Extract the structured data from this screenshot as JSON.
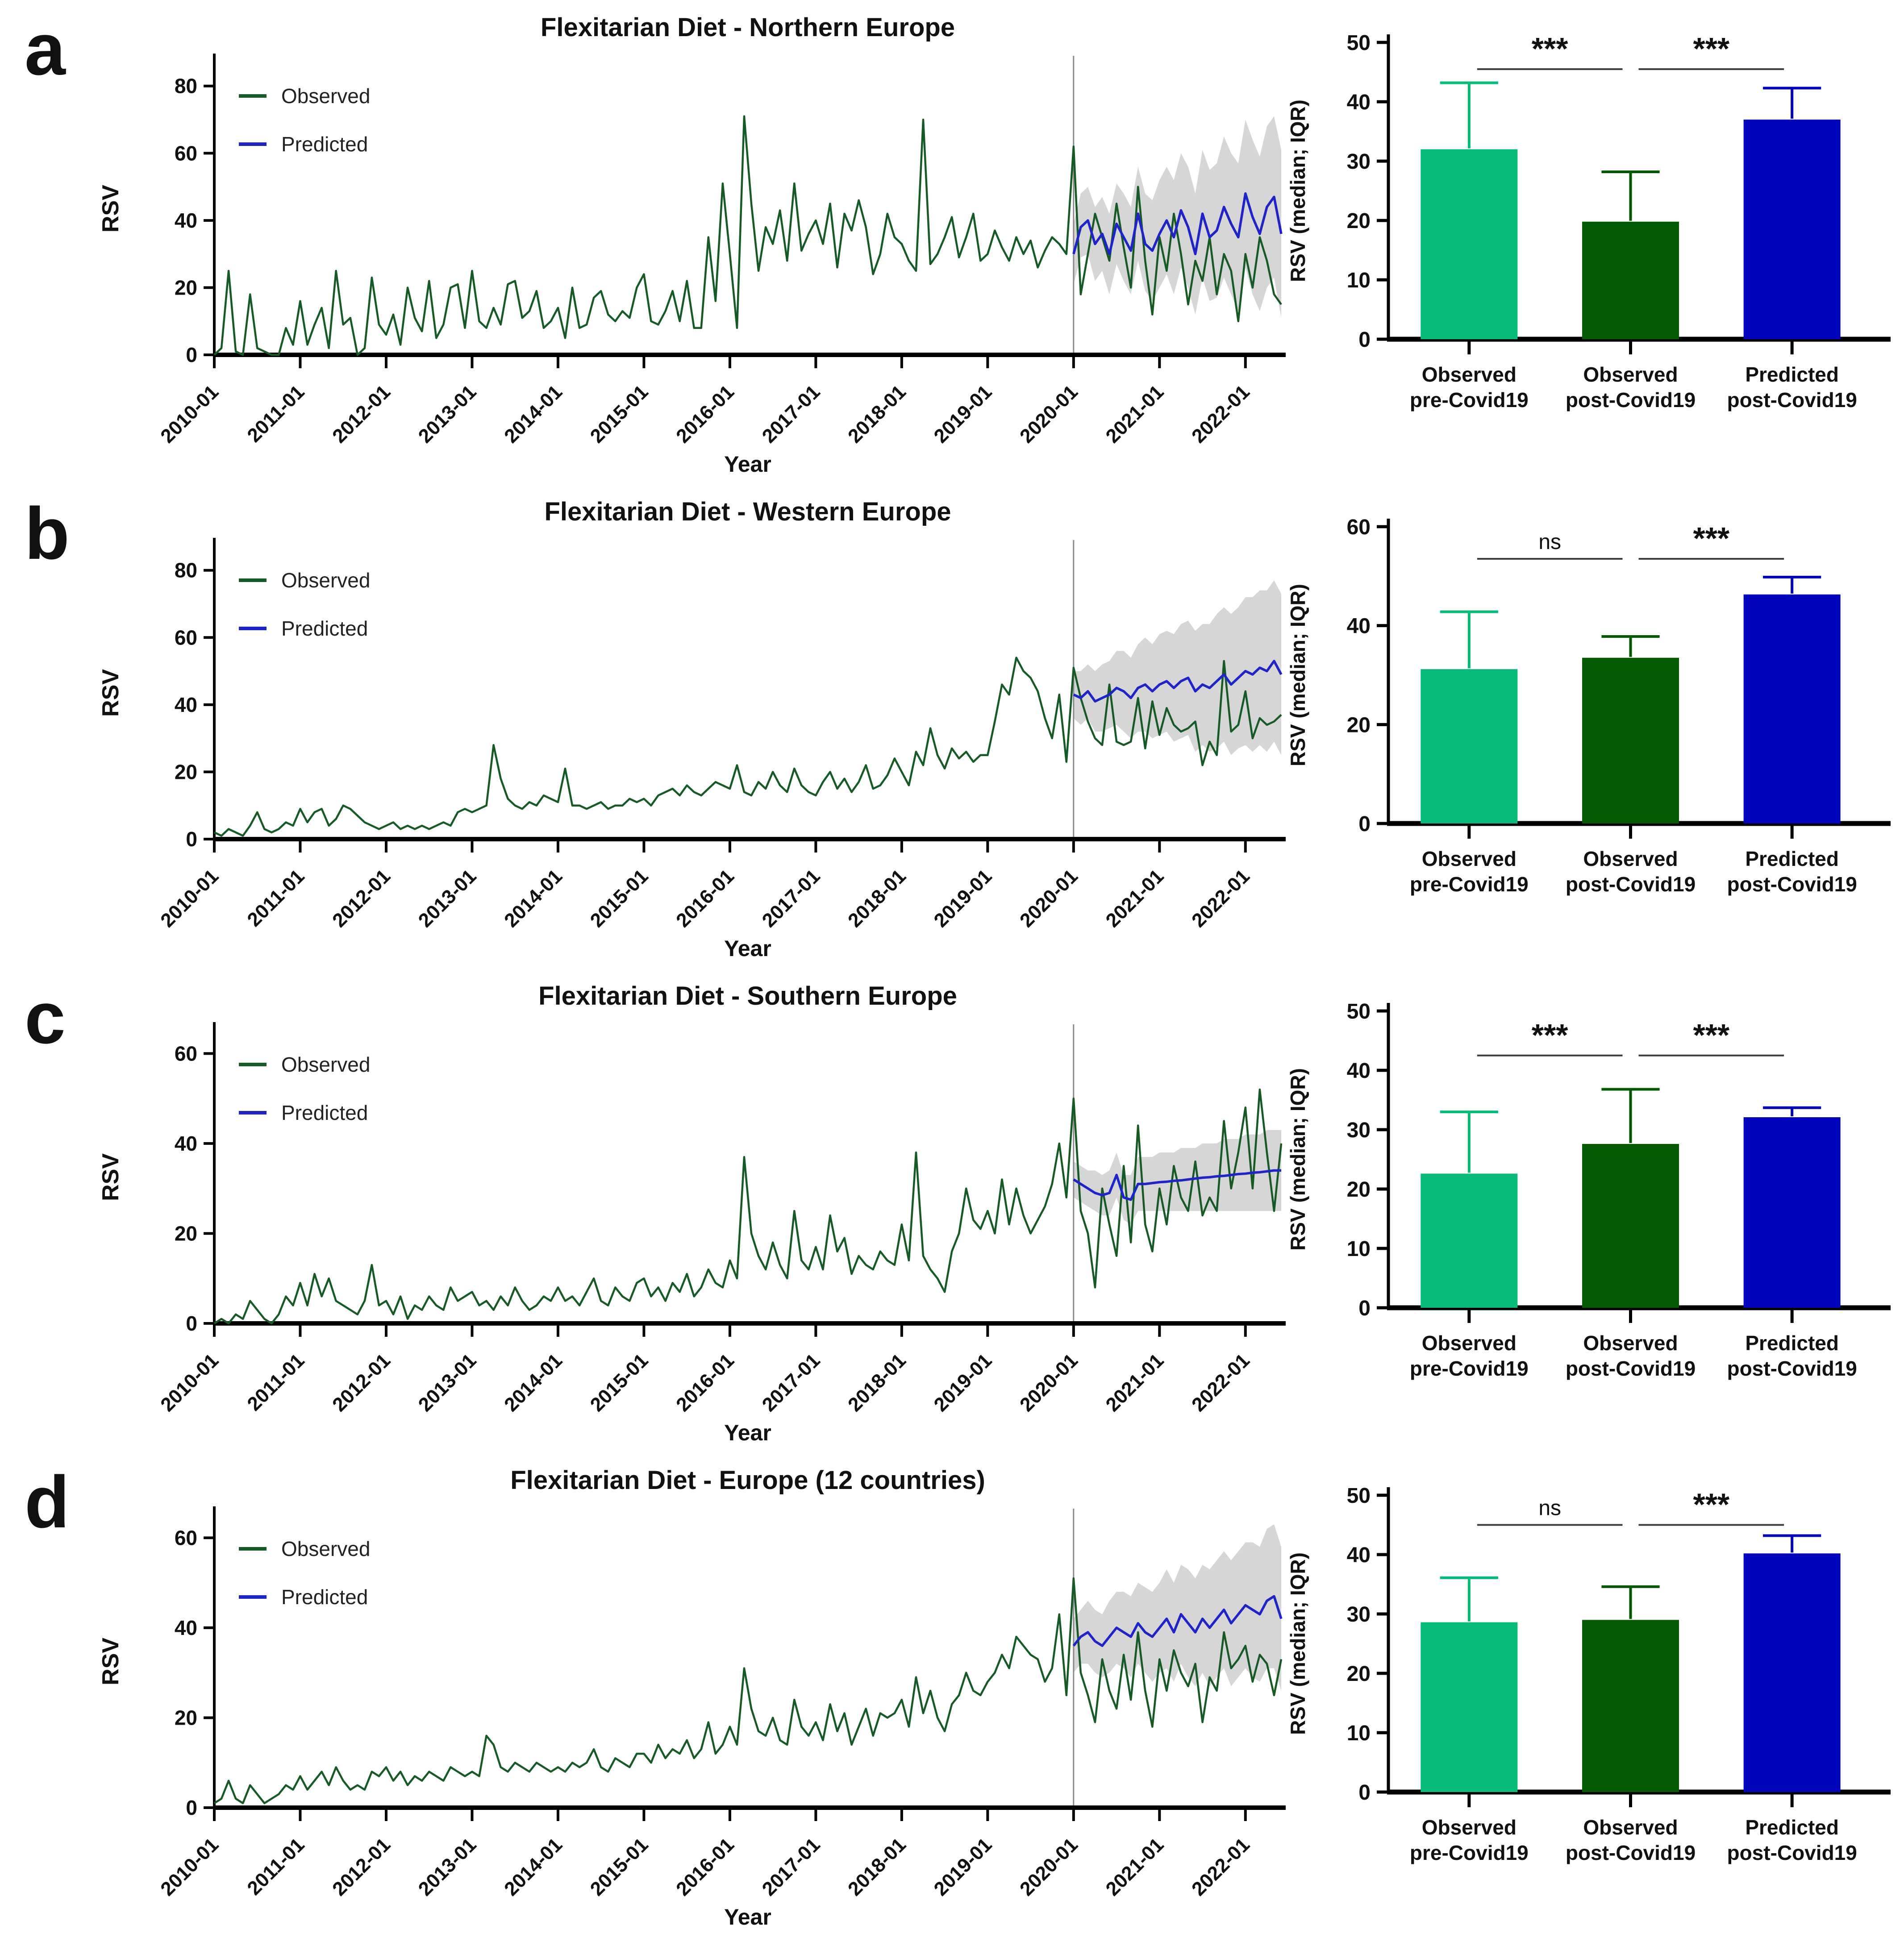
{
  "figure": {
    "xlabel": "Year",
    "line_ylabel": "RSV",
    "bar_ylabel": "RSV (median; IQR)",
    "legend": [
      "Observed",
      "Predicted"
    ],
    "x_tick_labels": [
      "2010-01",
      "2011-01",
      "2012-01",
      "2013-01",
      "2014-01",
      "2015-01",
      "2016-01",
      "2017-01",
      "2018-01",
      "2019-01",
      "2020-01",
      "2021-01",
      "2022-01"
    ]
  },
  "colors": {
    "observed_line": "#165a25",
    "predicted_line": "#1f24c7",
    "ci_band": "#cfcfcf",
    "vline": "#8a8a8a",
    "axis": "#000000",
    "bar_pre": "#07bc78",
    "bar_post": "#015a01",
    "bar_pred": "#0104bb",
    "sig_line": "#3c3c3c"
  },
  "chart_data": [
    {
      "letter": "a",
      "title": "Flexitarian Diet - Northern Europe",
      "line": {
        "type": "line",
        "ymax": 87,
        "yticks": [
          0,
          20,
          40,
          60,
          80
        ],
        "vline_index": 120,
        "observed": [
          0,
          2,
          25,
          1,
          0,
          18,
          2,
          1,
          0,
          0,
          8,
          3,
          16,
          3,
          9,
          14,
          2,
          25,
          9,
          11,
          0,
          2,
          23,
          9,
          6,
          12,
          3,
          20,
          11,
          7,
          22,
          5,
          9,
          20,
          21,
          8,
          25,
          10,
          8,
          14,
          9,
          21,
          22,
          11,
          13,
          19,
          8,
          10,
          14,
          5,
          20,
          8,
          9,
          17,
          19,
          12,
          10,
          13,
          11,
          20,
          24,
          10,
          9,
          13,
          19,
          10,
          22,
          8,
          8,
          35,
          16,
          51,
          30,
          8,
          71,
          45,
          25,
          38,
          33,
          43,
          28,
          51,
          31,
          36,
          40,
          33,
          45,
          26,
          42,
          37,
          46,
          38,
          24,
          30,
          42,
          35,
          33,
          28,
          25,
          70,
          27,
          30,
          35,
          41,
          29,
          35,
          42,
          28,
          30,
          37,
          32,
          28,
          35,
          30,
          34,
          26,
          31,
          35,
          33,
          30,
          62,
          18,
          30,
          42,
          35,
          28,
          45,
          32,
          20,
          50,
          28,
          12,
          35,
          25,
          42,
          30,
          15,
          28,
          22,
          35,
          18,
          30,
          25,
          10,
          30,
          20,
          35,
          28,
          18,
          15
        ],
        "predicted_start": 120,
        "predicted": [
          30,
          38,
          40,
          33,
          36,
          30,
          39,
          35,
          31,
          42,
          33,
          31,
          36,
          40,
          35,
          43,
          38,
          30,
          42,
          35,
          37,
          44,
          39,
          35,
          48,
          41,
          36,
          44,
          47,
          36
        ],
        "ci_upper": [
          39,
          48,
          50,
          44,
          47,
          42,
          51,
          48,
          44,
          56,
          48,
          46,
          52,
          56,
          52,
          60,
          56,
          48,
          61,
          55,
          57,
          65,
          60,
          57,
          70,
          64,
          59,
          68,
          71,
          61
        ],
        "ci_lower": [
          21,
          29,
          30,
          22,
          25,
          18,
          27,
          22,
          18,
          28,
          19,
          16,
          20,
          24,
          18,
          26,
          20,
          12,
          23,
          16,
          17,
          23,
          18,
          13,
          26,
          18,
          13,
          20,
          23,
          11
        ]
      },
      "bar": {
        "type": "bar",
        "ymax": 50,
        "yticks": [
          0,
          10,
          20,
          30,
          40,
          50
        ],
        "categories": [
          [
            "Observed",
            "pre-Covid19"
          ],
          [
            "Observed",
            "post-Covid19"
          ],
          [
            "Predicted",
            "post-Covid19"
          ]
        ],
        "values": [
          32,
          19.8,
          37
        ],
        "errors_upper": [
          43.2,
          28.2,
          42.3
        ],
        "sig": [
          {
            "from": 0,
            "to": 1,
            "label": "***"
          },
          {
            "from": 1,
            "to": 2,
            "label": "***"
          }
        ],
        "sig_y": 45.5
      }
    },
    {
      "letter": "b",
      "title": "Flexitarian Diet - Western Europe",
      "line": {
        "type": "line",
        "ymax": 87,
        "yticks": [
          0,
          20,
          40,
          60,
          80
        ],
        "vline_index": 120,
        "observed": [
          2,
          1,
          3,
          2,
          1,
          4,
          8,
          3,
          2,
          3,
          5,
          4,
          9,
          5,
          8,
          9,
          4,
          6,
          10,
          9,
          7,
          5,
          4,
          3,
          4,
          5,
          3,
          4,
          3,
          4,
          3,
          4,
          5,
          4,
          8,
          9,
          8,
          9,
          10,
          28,
          18,
          12,
          10,
          9,
          11,
          10,
          13,
          12,
          11,
          21,
          10,
          10,
          9,
          10,
          11,
          9,
          10,
          10,
          12,
          11,
          12,
          10,
          13,
          14,
          15,
          13,
          16,
          14,
          13,
          15,
          17,
          16,
          15,
          22,
          14,
          13,
          17,
          15,
          20,
          16,
          14,
          21,
          16,
          14,
          13,
          17,
          20,
          15,
          18,
          14,
          17,
          22,
          15,
          16,
          19,
          24,
          20,
          16,
          26,
          22,
          33,
          25,
          21,
          27,
          24,
          26,
          23,
          25,
          25,
          35,
          46,
          43,
          54,
          50,
          48,
          44,
          36,
          30,
          43,
          23,
          51,
          42,
          35,
          30,
          28,
          46,
          29,
          28,
          29,
          42,
          27,
          41,
          31,
          39,
          34,
          32,
          33,
          35,
          22,
          29,
          25,
          53,
          32,
          34,
          44,
          30,
          36,
          34,
          35,
          37
        ],
        "predicted_start": 120,
        "predicted": [
          43,
          42,
          44,
          41,
          42,
          43,
          45,
          44,
          42,
          45,
          46,
          44,
          46,
          47,
          45,
          47,
          48,
          44,
          46,
          45,
          47,
          49,
          46,
          48,
          50,
          49,
          51,
          50,
          53,
          49
        ],
        "ci_upper": [
          50,
          50,
          52,
          50,
          52,
          53,
          56,
          56,
          54,
          58,
          60,
          58,
          61,
          62,
          61,
          64,
          65,
          62,
          64,
          64,
          67,
          69,
          67,
          69,
          72,
          72,
          74,
          74,
          77,
          73
        ],
        "ci_lower": [
          36,
          34,
          36,
          32,
          32,
          33,
          34,
          32,
          30,
          32,
          32,
          30,
          31,
          32,
          29,
          30,
          31,
          26,
          28,
          26,
          27,
          29,
          25,
          27,
          28,
          26,
          28,
          26,
          29,
          25
        ]
      },
      "bar": {
        "type": "bar",
        "ymax": 60,
        "yticks": [
          0,
          20,
          40,
          60
        ],
        "categories": [
          [
            "Observed",
            "pre-Covid19"
          ],
          [
            "Observed",
            "post-Covid19"
          ],
          [
            "Predicted",
            "post-Covid19"
          ]
        ],
        "values": [
          31.2,
          33.5,
          46.3
        ],
        "errors_upper": [
          42.8,
          37.8,
          49.8
        ],
        "sig": [
          {
            "from": 0,
            "to": 1,
            "label": "ns"
          },
          {
            "from": 1,
            "to": 2,
            "label": "***"
          }
        ],
        "sig_y": 53.5
      }
    },
    {
      "letter": "c",
      "title": "Flexitarian Diet - Southern Europe",
      "line": {
        "type": "line",
        "ymax": 65,
        "yticks": [
          0,
          20,
          40,
          60
        ],
        "vline_index": 120,
        "observed": [
          0,
          1,
          0,
          2,
          1,
          5,
          3,
          1,
          0,
          2,
          6,
          4,
          9,
          4,
          11,
          6,
          10,
          5,
          4,
          3,
          2,
          5,
          13,
          4,
          5,
          2,
          6,
          1,
          4,
          3,
          6,
          4,
          3,
          8,
          5,
          6,
          7,
          4,
          5,
          3,
          6,
          4,
          8,
          5,
          3,
          4,
          6,
          5,
          8,
          5,
          6,
          4,
          7,
          10,
          5,
          4,
          8,
          6,
          5,
          9,
          10,
          6,
          8,
          5,
          9,
          7,
          11,
          6,
          8,
          12,
          9,
          8,
          14,
          10,
          37,
          20,
          15,
          12,
          18,
          13,
          10,
          25,
          14,
          12,
          17,
          12,
          24,
          16,
          19,
          11,
          15,
          13,
          12,
          16,
          14,
          13,
          22,
          14,
          38,
          15,
          12,
          10,
          7,
          16,
          20,
          30,
          23,
          21,
          25,
          20,
          32,
          22,
          30,
          24,
          20,
          23,
          26,
          31,
          40,
          28,
          50,
          25,
          20,
          8,
          30,
          22,
          15,
          35,
          18,
          44,
          22,
          16,
          30,
          22,
          35,
          28,
          25,
          36,
          24,
          28,
          25,
          45,
          30,
          38,
          48,
          30,
          52,
          38,
          25,
          40
        ],
        "predicted_start": 120,
        "predicted": [
          32,
          31,
          30,
          29,
          28.5,
          29,
          33,
          28,
          27.5,
          31,
          31,
          31.2,
          31.4,
          31.5,
          31.7,
          31.8,
          32,
          32.2,
          32.4,
          32.5,
          32.7,
          32.8,
          33,
          33.2,
          33.3,
          33.5,
          33.6,
          33.8,
          34,
          34
        ],
        "ci_upper": [
          36,
          35,
          34,
          34,
          33,
          34,
          38,
          33,
          33,
          37,
          37,
          37,
          38,
          38,
          38,
          39,
          39,
          39,
          40,
          40,
          40,
          41,
          41,
          41,
          42,
          42,
          42,
          43,
          43,
          43
        ],
        "ci_lower": [
          28,
          27,
          26,
          25,
          24,
          24,
          28,
          23,
          22,
          25,
          25,
          25,
          25,
          25,
          25,
          25,
          25,
          25,
          25,
          25,
          25,
          25,
          25,
          25,
          25,
          25,
          25,
          25,
          25,
          25
        ]
      },
      "bar": {
        "type": "bar",
        "ymax": 50,
        "yticks": [
          0,
          10,
          20,
          30,
          40,
          50
        ],
        "categories": [
          [
            "Observed",
            "pre-Covid19"
          ],
          [
            "Observed",
            "post-Covid19"
          ],
          [
            "Predicted",
            "post-Covid19"
          ]
        ],
        "values": [
          22.6,
          27.6,
          32.1
        ],
        "errors_upper": [
          33,
          36.8,
          33.7
        ],
        "sig": [
          {
            "from": 0,
            "to": 1,
            "label": "***"
          },
          {
            "from": 1,
            "to": 2,
            "label": "***"
          }
        ],
        "sig_y": 42.5
      }
    },
    {
      "letter": "d",
      "title": "Flexitarian Diet - Europe (12 countries)",
      "line": {
        "type": "line",
        "ymax": 65,
        "yticks": [
          0,
          20,
          40,
          60
        ],
        "vline_index": 120,
        "observed": [
          1,
          2,
          6,
          2,
          1,
          5,
          3,
          1,
          2,
          3,
          5,
          4,
          7,
          4,
          6,
          8,
          5,
          9,
          6,
          4,
          5,
          4,
          8,
          7,
          9,
          6,
          8,
          5,
          7,
          6,
          8,
          7,
          6,
          9,
          8,
          7,
          8,
          7,
          16,
          14,
          9,
          8,
          10,
          9,
          8,
          10,
          9,
          8,
          9,
          8,
          10,
          9,
          10,
          13,
          9,
          8,
          11,
          10,
          9,
          12,
          12,
          10,
          14,
          11,
          13,
          12,
          15,
          11,
          13,
          19,
          12,
          14,
          18,
          14,
          31,
          22,
          17,
          16,
          20,
          15,
          14,
          24,
          18,
          16,
          19,
          15,
          23,
          17,
          21,
          14,
          18,
          22,
          16,
          21,
          20,
          21,
          24,
          18,
          29,
          21,
          26,
          20,
          17,
          23,
          25,
          30,
          26,
          25,
          28,
          30,
          34,
          31,
          38,
          36,
          34,
          33,
          28,
          31,
          43,
          25,
          51,
          30,
          25,
          19,
          33,
          26,
          22,
          34,
          24,
          39,
          26,
          18,
          33,
          26,
          35,
          30,
          27,
          32,
          19,
          29,
          26,
          39,
          31,
          33,
          36,
          28,
          34,
          32,
          25,
          33
        ],
        "predicted_start": 120,
        "predicted": [
          36,
          38,
          39,
          37,
          36,
          38,
          40,
          39,
          38,
          41,
          39,
          38,
          40,
          42,
          39,
          43,
          41,
          39,
          42,
          40,
          42,
          44,
          41,
          43,
          45,
          44,
          43,
          46,
          47,
          42
        ],
        "ci_upper": [
          42,
          44,
          46,
          44,
          43,
          46,
          48,
          48,
          47,
          50,
          49,
          48,
          50,
          53,
          50,
          54,
          53,
          51,
          54,
          53,
          55,
          57,
          55,
          57,
          59,
          59,
          58,
          62,
          63,
          58
        ],
        "ci_lower": [
          30,
          32,
          32,
          30,
          29,
          30,
          32,
          31,
          29,
          32,
          30,
          28,
          30,
          31,
          28,
          32,
          29,
          27,
          30,
          27,
          29,
          31,
          27,
          29,
          31,
          29,
          28,
          31,
          31,
          26
        ]
      },
      "bar": {
        "type": "bar",
        "ymax": 50,
        "yticks": [
          0,
          10,
          20,
          30,
          40,
          50
        ],
        "categories": [
          [
            "Observed",
            "pre-Covid19"
          ],
          [
            "Observed",
            "post-Covid19"
          ],
          [
            "Predicted",
            "post-Covid19"
          ]
        ],
        "values": [
          28.6,
          29,
          40.2
        ],
        "errors_upper": [
          36.1,
          34.6,
          43.2
        ],
        "sig": [
          {
            "from": 0,
            "to": 1,
            "label": "ns"
          },
          {
            "from": 1,
            "to": 2,
            "label": "***"
          }
        ],
        "sig_y": 45
      }
    }
  ]
}
